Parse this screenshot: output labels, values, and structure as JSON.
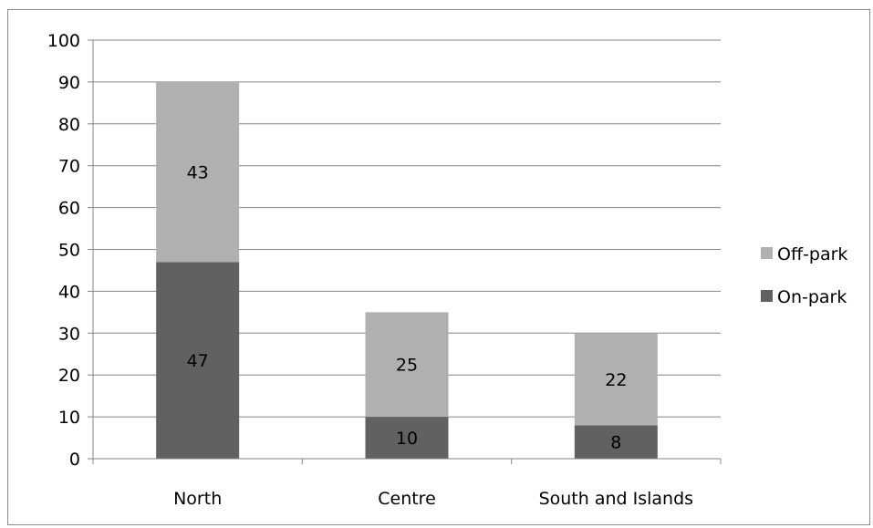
{
  "chart_data": {
    "type": "bar",
    "stacked": true,
    "categories": [
      "North",
      "Centre",
      "South and Islands"
    ],
    "series": [
      {
        "name": "On-park",
        "values": [
          47,
          10,
          8
        ],
        "color": "#616161"
      },
      {
        "name": "Off-park",
        "values": [
          43,
          25,
          22
        ],
        "color": "#b0b0b0"
      }
    ],
    "ylim": [
      0,
      100
    ],
    "yticks": [
      0,
      10,
      20,
      30,
      40,
      50,
      60,
      70,
      80,
      90,
      100
    ],
    "grid": true,
    "legend_position": "right",
    "legend_order": [
      "Off-park",
      "On-park"
    ],
    "data_labels": true
  }
}
